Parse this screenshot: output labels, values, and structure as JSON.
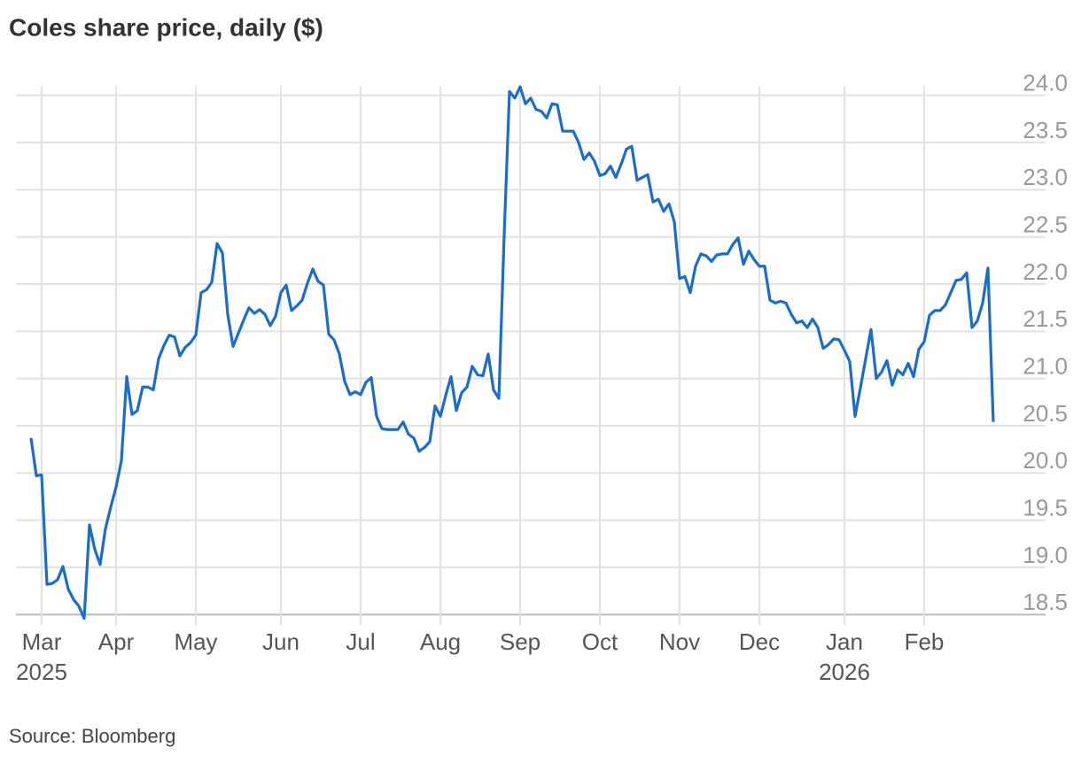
{
  "chart_data": {
    "type": "line",
    "title": "Coles share price, daily ($)",
    "source": "Source: Bloomberg",
    "categories": [
      null,
      null,
      "Mar\n2025",
      null,
      null,
      null,
      null,
      null,
      null,
      null,
      null,
      null,
      null,
      null,
      null,
      null,
      "Apr",
      null,
      null,
      null,
      null,
      null,
      null,
      null,
      null,
      null,
      null,
      null,
      null,
      null,
      null,
      "May",
      null,
      null,
      null,
      null,
      null,
      null,
      null,
      null,
      null,
      null,
      null,
      null,
      null,
      null,
      null,
      "Jun",
      null,
      null,
      null,
      null,
      null,
      null,
      null,
      null,
      null,
      null,
      null,
      null,
      null,
      null,
      "Jul",
      null,
      null,
      null,
      null,
      null,
      null,
      null,
      null,
      null,
      null,
      null,
      null,
      null,
      null,
      "Aug",
      null,
      null,
      null,
      null,
      null,
      null,
      null,
      null,
      null,
      null,
      null,
      null,
      null,
      null,
      "Sep",
      null,
      null,
      null,
      null,
      null,
      null,
      null,
      null,
      null,
      null,
      null,
      null,
      null,
      null,
      "Oct",
      null,
      null,
      null,
      null,
      null,
      null,
      null,
      null,
      null,
      null,
      null,
      null,
      null,
      null,
      "Nov",
      null,
      null,
      null,
      null,
      null,
      null,
      null,
      null,
      null,
      null,
      null,
      null,
      null,
      null,
      "Dec",
      null,
      null,
      null,
      null,
      null,
      null,
      null,
      null,
      null,
      null,
      null,
      null,
      null,
      null,
      null,
      "Jan\n2026",
      null,
      null,
      null,
      null,
      null,
      null,
      null,
      null,
      null,
      null,
      null,
      null,
      null,
      null,
      "Feb",
      null,
      null,
      null,
      null,
      null,
      null,
      null,
      null,
      null,
      null,
      null,
      null,
      null
    ],
    "series": [
      {
        "name": "Coles",
        "color": "#1a6dc9",
        "values": [
          20.37,
          19.97,
          19.98,
          18.82,
          18.83,
          18.87,
          19.01,
          18.77,
          18.66,
          18.59,
          18.46,
          19.45,
          19.19,
          19.03,
          19.41,
          19.64,
          19.85,
          20.13,
          21.02,
          20.62,
          20.66,
          20.91,
          20.91,
          20.88,
          21.21,
          21.35,
          21.46,
          21.44,
          21.24,
          21.33,
          21.38,
          21.46,
          21.91,
          21.94,
          22.02,
          22.43,
          22.33,
          21.68,
          21.34,
          21.48,
          21.62,
          21.75,
          21.69,
          21.73,
          21.68,
          21.56,
          21.66,
          21.91,
          21.99,
          21.72,
          21.77,
          21.83,
          22.01,
          22.16,
          22.03,
          21.99,
          21.47,
          21.41,
          21.26,
          20.97,
          20.83,
          20.86,
          20.83,
          20.96,
          21.01,
          20.6,
          20.47,
          20.46,
          20.46,
          20.46,
          20.54,
          20.41,
          20.37,
          20.23,
          20.27,
          20.33,
          20.71,
          20.6,
          20.82,
          21.02,
          20.66,
          20.85,
          20.91,
          21.13,
          21.04,
          21.03,
          21.26,
          20.88,
          20.79,
          22.52,
          24.04,
          23.97,
          24.09,
          23.91,
          23.97,
          23.85,
          23.83,
          23.76,
          23.91,
          23.9,
          23.62,
          23.62,
          23.62,
          23.5,
          23.32,
          23.39,
          23.3,
          23.15,
          23.17,
          23.25,
          23.13,
          23.27,
          23.43,
          23.46,
          23.1,
          23.13,
          23.16,
          22.87,
          22.9,
          22.77,
          22.85,
          22.66,
          22.06,
          22.08,
          21.91,
          22.19,
          22.32,
          22.3,
          22.24,
          22.31,
          22.32,
          22.32,
          22.42,
          22.49,
          22.21,
          22.35,
          22.26,
          22.19,
          22.19,
          21.83,
          21.8,
          21.82,
          21.8,
          21.68,
          21.59,
          21.61,
          21.54,
          21.63,
          21.54,
          21.32,
          21.36,
          21.42,
          21.41,
          21.3,
          21.18,
          20.6,
          20.9,
          21.21,
          21.52,
          21.0,
          21.07,
          21.19,
          20.93,
          21.09,
          21.04,
          21.16,
          21.02,
          21.31,
          21.39,
          21.67,
          21.72,
          21.72,
          21.78,
          21.91,
          22.04,
          22.05,
          22.12,
          21.54,
          21.61,
          21.8,
          22.17,
          20.54
        ]
      }
    ],
    "ylim": [
      18.4,
      24.1
    ],
    "yticks": [
      18.5,
      {
        "value": 19,
        "label": "19.0"
      },
      19.5,
      {
        "value": 20,
        "label": "20.0"
      },
      20.5,
      {
        "value": 21,
        "label": "21.0"
      },
      21.5,
      {
        "value": 22,
        "label": "22.0"
      },
      22.5,
      {
        "value": 23,
        "label": "23.0"
      },
      23.5,
      {
        "value": 24,
        "label": "24.0"
      }
    ],
    "grid": true
  }
}
